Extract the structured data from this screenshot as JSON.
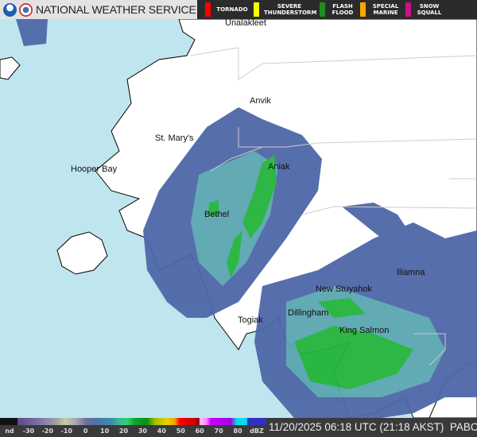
{
  "header": {
    "title": "NATIONAL WEATHER SERVICE",
    "logos": [
      "noaa-logo",
      "nws-logo"
    ],
    "warnings": [
      {
        "label": "TORNADO",
        "color": "#ff0000"
      },
      {
        "label": "SEVERE THUNDERSTORM",
        "color": "#ffff00"
      },
      {
        "label": "FLASH FLOOD",
        "color": "#228b22"
      },
      {
        "label": "SPECIAL MARINE",
        "color": "#ffa500"
      },
      {
        "label": "SNOW SQUALL",
        "color": "#c71585"
      }
    ]
  },
  "map": {
    "places": [
      "Unalakleet",
      "Anvik",
      "St. Mary's",
      "Hooper Bay",
      "Aniak",
      "Bethel",
      "Iliamna",
      "New Stuyahok",
      "Dillingham",
      "Togiak",
      "King Salmon"
    ],
    "colors": {
      "sea": "#bfe6ee",
      "land": "#ffffff",
      "radar_light": "#4f67a8",
      "radar_mid": "#5aa6b0",
      "radar_heavy": "#22b43a"
    }
  },
  "legend": {
    "ticks": [
      "nd",
      "-30",
      "-20",
      "-10",
      "0",
      "10",
      "20",
      "30",
      "40",
      "50",
      "60",
      "70",
      "80",
      "dBZ"
    ]
  },
  "footer": {
    "timestamp": "11/20/2025 06:18 UTC (21:18 AKST)",
    "station": "PABC"
  }
}
